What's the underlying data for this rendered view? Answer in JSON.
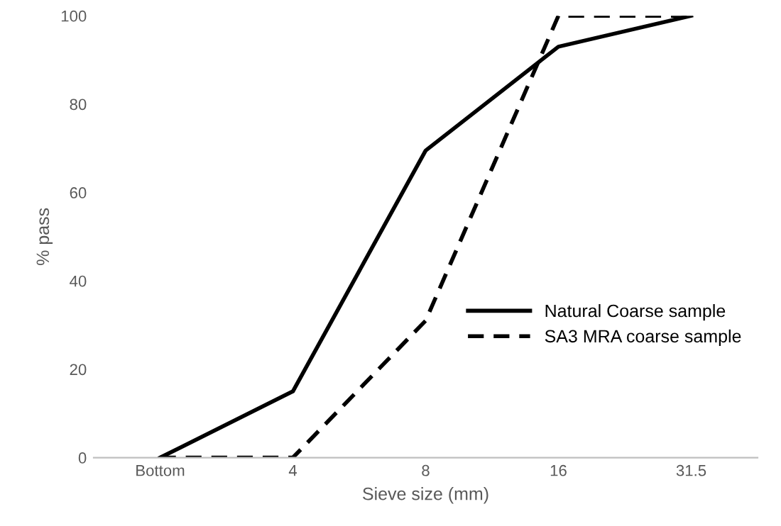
{
  "chart_data": {
    "type": "line",
    "xlabel": "Sieve size (mm)",
    "ylabel": "% pass",
    "categories": [
      "Bottom",
      "4",
      "8",
      "16",
      "31.5"
    ],
    "series": [
      {
        "name": "Natural Coarse sample",
        "color": "#000000",
        "values": [
          0,
          15,
          69.5,
          93,
          100
        ],
        "line_style": "solid"
      },
      {
        "name": "SA3 MRA coarse sample",
        "color": "#000000",
        "values": [
          0,
          0,
          31,
          100,
          100
        ],
        "line_style": "dashed"
      }
    ],
    "ylim": [
      0,
      100
    ],
    "yticks": [
      0,
      20,
      40,
      60,
      80,
      100
    ],
    "grid": false,
    "legend": "right",
    "marker": "none"
  }
}
